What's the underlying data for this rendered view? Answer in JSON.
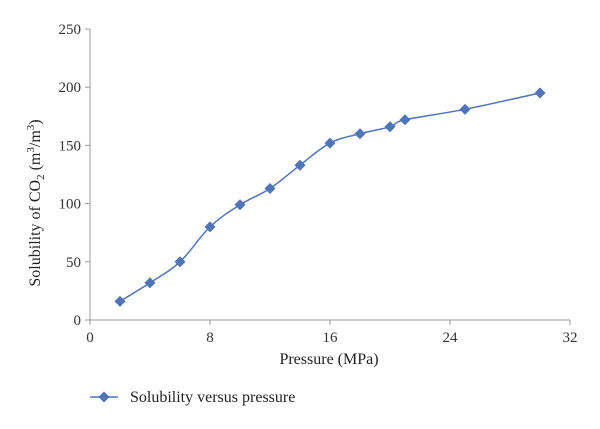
{
  "chart_data": {
    "type": "line",
    "title": "",
    "xlabel": "Pressure (MPa)",
    "ylabel_parts": {
      "prefix": "Solubility of CO",
      "sub": "2",
      "mid": " (m",
      "sup1": "3",
      "slash": "/m",
      "sup2": "3",
      "suffix": ")"
    },
    "xlim": [
      0,
      32
    ],
    "ylim": [
      0,
      250
    ],
    "xticks": [
      0,
      8,
      16,
      24,
      32
    ],
    "yticks": [
      0,
      50,
      100,
      150,
      200,
      250
    ],
    "grid": false,
    "legend_position": "bottom-left",
    "series": [
      {
        "name": "Solubility versus pressure",
        "color": "#4f74b8",
        "marker": "diamond",
        "x": [
          2,
          4,
          6,
          8,
          10,
          12,
          14,
          16,
          18,
          20,
          21,
          25,
          30
        ],
        "y": [
          16,
          32,
          50,
          80,
          99,
          113,
          133,
          152,
          160,
          166,
          172,
          181,
          195
        ]
      }
    ]
  }
}
